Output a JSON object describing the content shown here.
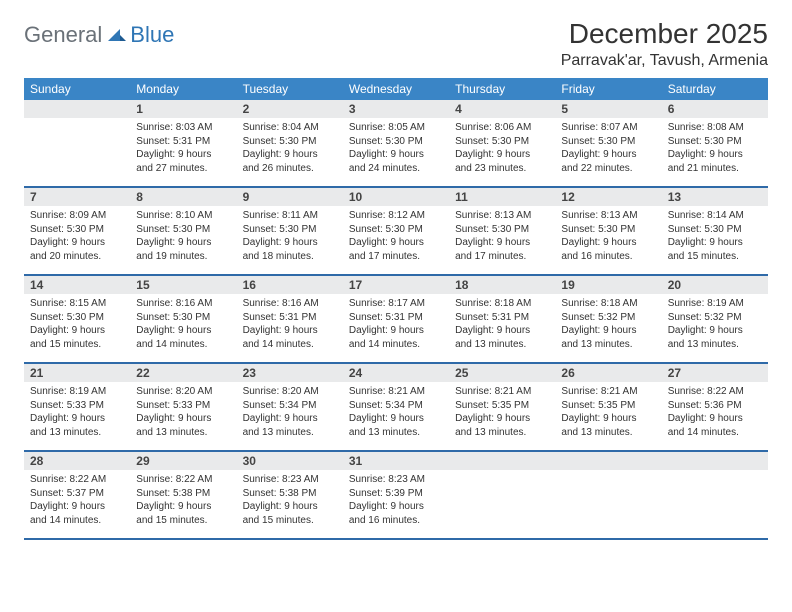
{
  "brand": {
    "part1": "General",
    "part2": "Blue",
    "color1": "#6a7178",
    "color2": "#2f76b5"
  },
  "title": "December 2025",
  "location": "Parravak'ar, Tavush, Armenia",
  "colors": {
    "header_bg": "#3a85c6",
    "header_text": "#ffffff",
    "daynum_bg": "#e9eaeb",
    "row_border": "#2f6aa8",
    "body_text": "#333333"
  },
  "weekdays": [
    "Sunday",
    "Monday",
    "Tuesday",
    "Wednesday",
    "Thursday",
    "Friday",
    "Saturday"
  ],
  "weeks": [
    [
      null,
      {
        "n": "1",
        "sunrise": "8:03 AM",
        "sunset": "5:31 PM",
        "daylight": "9 hours and 27 minutes."
      },
      {
        "n": "2",
        "sunrise": "8:04 AM",
        "sunset": "5:30 PM",
        "daylight": "9 hours and 26 minutes."
      },
      {
        "n": "3",
        "sunrise": "8:05 AM",
        "sunset": "5:30 PM",
        "daylight": "9 hours and 24 minutes."
      },
      {
        "n": "4",
        "sunrise": "8:06 AM",
        "sunset": "5:30 PM",
        "daylight": "9 hours and 23 minutes."
      },
      {
        "n": "5",
        "sunrise": "8:07 AM",
        "sunset": "5:30 PM",
        "daylight": "9 hours and 22 minutes."
      },
      {
        "n": "6",
        "sunrise": "8:08 AM",
        "sunset": "5:30 PM",
        "daylight": "9 hours and 21 minutes."
      }
    ],
    [
      {
        "n": "7",
        "sunrise": "8:09 AM",
        "sunset": "5:30 PM",
        "daylight": "9 hours and 20 minutes."
      },
      {
        "n": "8",
        "sunrise": "8:10 AM",
        "sunset": "5:30 PM",
        "daylight": "9 hours and 19 minutes."
      },
      {
        "n": "9",
        "sunrise": "8:11 AM",
        "sunset": "5:30 PM",
        "daylight": "9 hours and 18 minutes."
      },
      {
        "n": "10",
        "sunrise": "8:12 AM",
        "sunset": "5:30 PM",
        "daylight": "9 hours and 17 minutes."
      },
      {
        "n": "11",
        "sunrise": "8:13 AM",
        "sunset": "5:30 PM",
        "daylight": "9 hours and 17 minutes."
      },
      {
        "n": "12",
        "sunrise": "8:13 AM",
        "sunset": "5:30 PM",
        "daylight": "9 hours and 16 minutes."
      },
      {
        "n": "13",
        "sunrise": "8:14 AM",
        "sunset": "5:30 PM",
        "daylight": "9 hours and 15 minutes."
      }
    ],
    [
      {
        "n": "14",
        "sunrise": "8:15 AM",
        "sunset": "5:30 PM",
        "daylight": "9 hours and 15 minutes."
      },
      {
        "n": "15",
        "sunrise": "8:16 AM",
        "sunset": "5:30 PM",
        "daylight": "9 hours and 14 minutes."
      },
      {
        "n": "16",
        "sunrise": "8:16 AM",
        "sunset": "5:31 PM",
        "daylight": "9 hours and 14 minutes."
      },
      {
        "n": "17",
        "sunrise": "8:17 AM",
        "sunset": "5:31 PM",
        "daylight": "9 hours and 14 minutes."
      },
      {
        "n": "18",
        "sunrise": "8:18 AM",
        "sunset": "5:31 PM",
        "daylight": "9 hours and 13 minutes."
      },
      {
        "n": "19",
        "sunrise": "8:18 AM",
        "sunset": "5:32 PM",
        "daylight": "9 hours and 13 minutes."
      },
      {
        "n": "20",
        "sunrise": "8:19 AM",
        "sunset": "5:32 PM",
        "daylight": "9 hours and 13 minutes."
      }
    ],
    [
      {
        "n": "21",
        "sunrise": "8:19 AM",
        "sunset": "5:33 PM",
        "daylight": "9 hours and 13 minutes."
      },
      {
        "n": "22",
        "sunrise": "8:20 AM",
        "sunset": "5:33 PM",
        "daylight": "9 hours and 13 minutes."
      },
      {
        "n": "23",
        "sunrise": "8:20 AM",
        "sunset": "5:34 PM",
        "daylight": "9 hours and 13 minutes."
      },
      {
        "n": "24",
        "sunrise": "8:21 AM",
        "sunset": "5:34 PM",
        "daylight": "9 hours and 13 minutes."
      },
      {
        "n": "25",
        "sunrise": "8:21 AM",
        "sunset": "5:35 PM",
        "daylight": "9 hours and 13 minutes."
      },
      {
        "n": "26",
        "sunrise": "8:21 AM",
        "sunset": "5:35 PM",
        "daylight": "9 hours and 13 minutes."
      },
      {
        "n": "27",
        "sunrise": "8:22 AM",
        "sunset": "5:36 PM",
        "daylight": "9 hours and 14 minutes."
      }
    ],
    [
      {
        "n": "28",
        "sunrise": "8:22 AM",
        "sunset": "5:37 PM",
        "daylight": "9 hours and 14 minutes."
      },
      {
        "n": "29",
        "sunrise": "8:22 AM",
        "sunset": "5:38 PM",
        "daylight": "9 hours and 15 minutes."
      },
      {
        "n": "30",
        "sunrise": "8:23 AM",
        "sunset": "5:38 PM",
        "daylight": "9 hours and 15 minutes."
      },
      {
        "n": "31",
        "sunrise": "8:23 AM",
        "sunset": "5:39 PM",
        "daylight": "9 hours and 16 minutes."
      },
      null,
      null,
      null
    ]
  ],
  "labels": {
    "sunrise_prefix": "Sunrise: ",
    "sunset_prefix": "Sunset: ",
    "daylight_prefix": "Daylight: "
  }
}
